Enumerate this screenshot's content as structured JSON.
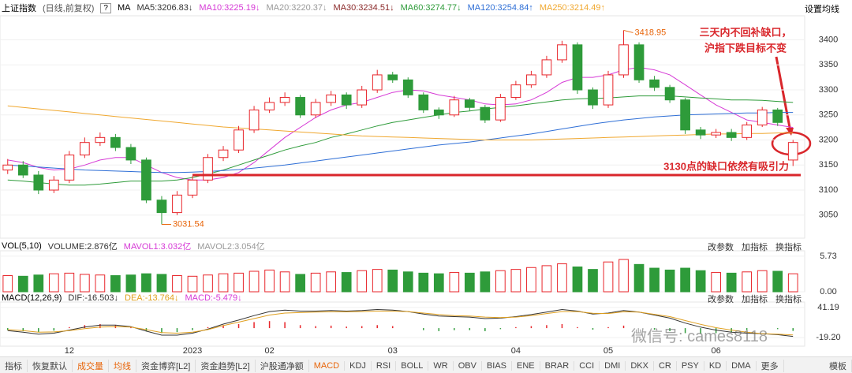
{
  "header": {
    "title": "上证指数",
    "subtitle": "(日线,前复权)",
    "ma_label": "MA",
    "settings": "设置均线"
  },
  "chart_data": [
    {
      "type": "candlestick",
      "categories": [
        null,
        null,
        null,
        null,
        "12",
        null,
        null,
        null,
        null,
        null,
        null,
        null,
        "2023",
        null,
        null,
        null,
        null,
        "02",
        null,
        null,
        null,
        null,
        null,
        null,
        null,
        "03",
        null,
        null,
        null,
        null,
        null,
        null,
        null,
        "04",
        null,
        null,
        null,
        null,
        null,
        "05",
        null,
        null,
        null,
        null,
        null,
        null,
        "06",
        null,
        null,
        null,
        null,
        null
      ],
      "open": [
        3140,
        3150,
        3130,
        3100,
        3120,
        3170,
        3195,
        3205,
        3185,
        3160,
        3080,
        3055,
        3090,
        3120,
        3165,
        3180,
        3220,
        3260,
        3275,
        3285,
        3250,
        3275,
        3290,
        3270,
        3300,
        3330,
        3320,
        3290,
        3260,
        3250,
        3280,
        3265,
        3240,
        3285,
        3310,
        3330,
        3360,
        3390,
        3300,
        3270,
        3330,
        3390,
        3320,
        3305,
        3280,
        3220,
        3210,
        3215,
        3205,
        3230,
        3260,
        3160
      ],
      "high": [
        3162,
        3158,
        3138,
        3128,
        3178,
        3205,
        3215,
        3212,
        3192,
        3165,
        3088,
        3098,
        3128,
        3172,
        3188,
        3228,
        3268,
        3285,
        3295,
        3290,
        3282,
        3298,
        3295,
        3308,
        3340,
        3336,
        3325,
        3295,
        3265,
        3288,
        3284,
        3270,
        3292,
        3318,
        3338,
        3368,
        3398,
        3395,
        3305,
        3338,
        3418.95,
        3395,
        3328,
        3310,
        3284,
        3226,
        3222,
        3222,
        3236,
        3266,
        3264,
        3200
      ],
      "low": [
        3132,
        3124,
        3092,
        3094,
        3114,
        3164,
        3188,
        3178,
        3152,
        3074,
        3031.54,
        3050,
        3084,
        3114,
        3158,
        3174,
        3214,
        3254,
        3268,
        3244,
        3244,
        3268,
        3262,
        3264,
        3294,
        3314,
        3284,
        3254,
        3242,
        3246,
        3258,
        3234,
        3236,
        3280,
        3304,
        3324,
        3354,
        3292,
        3262,
        3264,
        3324,
        3314,
        3298,
        3274,
        3212,
        3202,
        3204,
        3198,
        3200,
        3226,
        3228,
        3148
      ],
      "close": [
        3150,
        3130,
        3100,
        3120,
        3170,
        3195,
        3205,
        3185,
        3160,
        3080,
        3055,
        3090,
        3120,
        3165,
        3180,
        3220,
        3260,
        3275,
        3285,
        3250,
        3275,
        3290,
        3270,
        3300,
        3330,
        3320,
        3290,
        3260,
        3250,
        3280,
        3265,
        3240,
        3285,
        3310,
        3330,
        3360,
        3390,
        3300,
        3270,
        3330,
        3390,
        3320,
        3305,
        3280,
        3220,
        3210,
        3215,
        3205,
        3230,
        3260,
        3235,
        3195
      ],
      "up_color": "#e8262b",
      "down_color": "#2e9b3a",
      "series": [
        {
          "name": "MA5:3206.83↓",
          "color": "#333333"
        },
        {
          "name": "MA10:3225.19↓",
          "color": "#d63ad6",
          "values": [
            3160,
            3155,
            3145,
            3140,
            3142,
            3150,
            3160,
            3165,
            3165,
            3150,
            3135,
            3125,
            3120,
            3120,
            3125,
            3135,
            3155,
            3180,
            3205,
            3225,
            3245,
            3260,
            3270,
            3275,
            3285,
            3295,
            3300,
            3298,
            3290,
            3285,
            3280,
            3272,
            3270,
            3272,
            3280,
            3295,
            3315,
            3325,
            3325,
            3330,
            3340,
            3345,
            3340,
            3330,
            3310,
            3290,
            3270,
            3255,
            3240,
            3235,
            3230,
            3225
          ]
        },
        {
          "name": "MA20:3220.37↓",
          "color": "#999999"
        },
        {
          "name": "MA30:3234.51↓",
          "color": "#8b2a2a"
        },
        {
          "name": "MA60:3274.77↓",
          "color": "#2e9b3a",
          "values": [
            3120,
            3118,
            3115,
            3112,
            3110,
            3110,
            3112,
            3115,
            3118,
            3118,
            3118,
            3120,
            3125,
            3132,
            3140,
            3150,
            3160,
            3170,
            3180,
            3188,
            3195,
            3205,
            3212,
            3220,
            3228,
            3235,
            3240,
            3245,
            3250,
            3255,
            3258,
            3262,
            3265,
            3268,
            3272,
            3276,
            3280,
            3282,
            3283,
            3284,
            3286,
            3288,
            3288,
            3288,
            3286,
            3284,
            3282,
            3280,
            3280,
            3279,
            3277,
            3275
          ]
        },
        {
          "name": "MA120:3254.84↑",
          "color": "#2f6fd6",
          "values": [
            3150,
            3148,
            3146,
            3144,
            3142,
            3140,
            3139,
            3138,
            3137,
            3136,
            3135,
            3135,
            3136,
            3137,
            3139,
            3141,
            3144,
            3147,
            3150,
            3154,
            3158,
            3162,
            3166,
            3170,
            3174,
            3178,
            3182,
            3186,
            3190,
            3193,
            3196,
            3200,
            3204,
            3208,
            3212,
            3217,
            3222,
            3227,
            3232,
            3236,
            3240,
            3243,
            3246,
            3248,
            3250,
            3251,
            3252,
            3253,
            3254,
            3254,
            3255,
            3255
          ]
        },
        {
          "name": "MA250:3214.49↑",
          "color": "#f0a830",
          "values": [
            3268,
            3265,
            3262,
            3259,
            3256,
            3253,
            3250,
            3247,
            3244,
            3241,
            3238,
            3235,
            3232,
            3229,
            3226,
            3224,
            3222,
            3220,
            3218,
            3216,
            3214,
            3212,
            3210,
            3208,
            3207,
            3206,
            3205,
            3204,
            3203,
            3202,
            3201,
            3200,
            3200,
            3200,
            3200,
            3201,
            3202,
            3203,
            3204,
            3205,
            3206,
            3207,
            3208,
            3209,
            3210,
            3211,
            3212,
            3212,
            3213,
            3213,
            3214,
            3214
          ]
        }
      ],
      "annotations": [
        {
          "label": "3418.95",
          "index": 40,
          "value": 3418.95
        },
        {
          "label": "3031.54",
          "index": 10,
          "value": 3031.54
        }
      ],
      "gap_line": {
        "value": 3130,
        "label": "3130点的缺口依然有吸引力",
        "color": "#d9262b"
      },
      "note": [
        "三天内不回补缺口，",
        "沪指下跌目标不变"
      ],
      "ylim": [
        3004,
        3448
      ],
      "yticks": [
        3050,
        3100,
        3150,
        3200,
        3250,
        3300,
        3350,
        3400
      ]
    },
    {
      "type": "bar",
      "title": "VOL(5,10)",
      "legend": [
        {
          "name": "VOLUME:2.876亿",
          "color": "#333333"
        },
        {
          "name": "MAVOL1:3.032亿",
          "color": "#d63ad6"
        },
        {
          "name": "MAVOL2:3.054亿",
          "color": "#999999"
        }
      ],
      "values": [
        2.6,
        2.5,
        2.7,
        2.9,
        3.0,
        2.8,
        2.7,
        2.6,
        2.7,
        2.9,
        2.8,
        2.6,
        2.5,
        2.7,
        2.9,
        3.0,
        3.3,
        3.5,
        3.2,
        2.8,
        3.0,
        3.2,
        3.1,
        3.4,
        3.6,
        3.5,
        3.2,
        3.0,
        2.9,
        3.1,
        3.0,
        3.2,
        3.4,
        3.6,
        3.9,
        4.2,
        4.5,
        4.0,
        3.6,
        4.8,
        5.2,
        4.4,
        3.8,
        3.5,
        3.8,
        3.4,
        3.1,
        3.0,
        3.2,
        3.4,
        3.3,
        2.9
      ],
      "ylim": [
        0,
        6.6
      ],
      "yticks": [
        {
          "value": 0,
          "label": "0.00"
        },
        5.73
      ]
    },
    {
      "type": "macd",
      "title": "MACD(12,26,9)",
      "series": [
        {
          "name": "DIF:-16.503↓",
          "color": "#333333",
          "values": [
            -5,
            -8,
            -12,
            -10,
            -4,
            2,
            6,
            6,
            3,
            -6,
            -14,
            -14,
            -10,
            -2,
            8,
            16,
            25,
            33,
            36,
            34,
            34,
            35,
            34,
            35,
            37,
            36,
            33,
            28,
            24,
            23,
            22,
            19,
            20,
            23,
            27,
            32,
            37,
            34,
            28,
            30,
            35,
            32,
            26,
            20,
            10,
            2,
            -4,
            -8,
            -10,
            -11,
            -13,
            -16.503
          ]
        },
        {
          "name": "DEA:-13.764↓",
          "color": "#e0a020",
          "values": [
            -3,
            -5,
            -8,
            -7.5,
            -5,
            -1,
            2,
            3,
            2,
            -3,
            -9,
            -10,
            -8,
            -3,
            5,
            12,
            19,
            26,
            30,
            31,
            32,
            32.5,
            32.5,
            33,
            34,
            34,
            33,
            30,
            27,
            25,
            24,
            22,
            21,
            22,
            25,
            29,
            33,
            33,
            29.5,
            29,
            32.5,
            32,
            27.5,
            23,
            15,
            7.5,
            1,
            -4,
            -8,
            -11,
            -12,
            -13.764
          ]
        }
      ],
      "histogram": {
        "name": "MACD:-5.479↓",
        "color": "#d63ad6",
        "values": [
          -4,
          -6,
          -8,
          -5,
          2,
          6,
          8,
          6,
          2,
          -6,
          -10,
          -8,
          -4,
          2,
          6,
          8,
          12,
          14,
          12,
          6,
          4,
          5,
          3,
          4,
          6,
          4,
          0,
          -4,
          -6,
          -4,
          -4,
          -6,
          -2,
          2,
          4,
          6,
          8,
          2,
          -3,
          2,
          5,
          0,
          -3,
          -6,
          -10,
          -11,
          -10,
          -8,
          -4,
          0,
          -2,
          -5.479
        ]
      },
      "ylim": [
        -36,
        52
      ],
      "yticks": [
        41.19,
        {
          "value": -19.2,
          "label": "-19.20"
        }
      ]
    }
  ],
  "panel_buttons": [
    "改参数",
    "加指标",
    "换指标"
  ],
  "tabs": [
    {
      "label": "指标"
    },
    {
      "label": "恢复默认"
    },
    {
      "label": "成交量",
      "color": "#e8650a"
    },
    {
      "label": "均线",
      "color": "#e8650a"
    },
    {
      "label": "资金博弈[L2]"
    },
    {
      "label": "资金趋势[L2]"
    },
    {
      "label": "沪股通净额"
    },
    {
      "label": "MACD",
      "color": "#e8650a"
    },
    {
      "label": "KDJ"
    },
    {
      "label": "RSI"
    },
    {
      "label": "BOLL"
    },
    {
      "label": "WR"
    },
    {
      "label": "OBV"
    },
    {
      "label": "BIAS"
    },
    {
      "label": "ENE"
    },
    {
      "label": "BRAR"
    },
    {
      "label": "CCI"
    },
    {
      "label": "DMI"
    },
    {
      "label": "DKX"
    },
    {
      "label": "CR"
    },
    {
      "label": "PSY"
    },
    {
      "label": "KD"
    },
    {
      "label": "DMA"
    },
    {
      "label": "更多"
    },
    {
      "label": "模板"
    }
  ],
  "watermark": "微信号: cames8118"
}
